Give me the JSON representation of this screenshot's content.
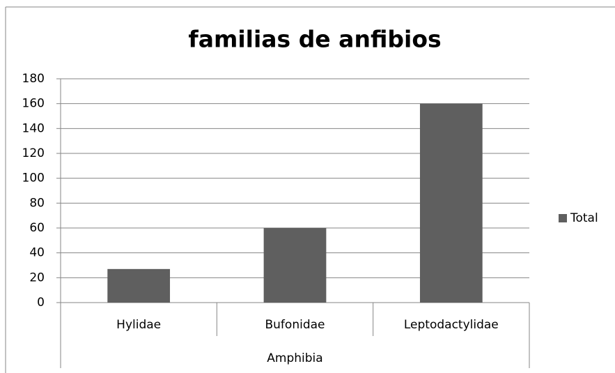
{
  "chart_data": {
    "type": "bar",
    "title": "familias de anfibios",
    "categories": [
      "Hylidae",
      "Bufonidae",
      "Leptodactylidae"
    ],
    "group_label": "Amphibia",
    "series": [
      {
        "name": "Total",
        "color": "#5f5f5f",
        "values": [
          27,
          60,
          160
        ]
      }
    ],
    "ylim": [
      0,
      180
    ],
    "yticks": [
      0,
      20,
      40,
      60,
      80,
      100,
      120,
      140,
      160,
      180
    ],
    "grid": true,
    "legend": "right"
  }
}
